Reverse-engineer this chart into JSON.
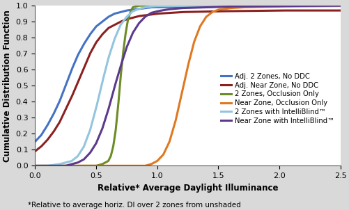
{
  "title": "",
  "xlabel": "Relative* Average Daylight Illuminance",
  "ylabel": "Cumulative Distribution Function",
  "footnote": "*Relative to average horiz. DI over 2 zones from unshaded",
  "xlim": [
    0,
    2.5
  ],
  "ylim": [
    0,
    1.0
  ],
  "xticks": [
    0,
    0.5,
    1.0,
    1.5,
    2.0,
    2.5
  ],
  "yticks": [
    0,
    0.1,
    0.2,
    0.3,
    0.4,
    0.5,
    0.6,
    0.7,
    0.8,
    0.9,
    1.0
  ],
  "series": [
    {
      "label": "Adj. 2 Zones, No DDC",
      "color": "#4472C4",
      "x_points": [
        0.0,
        0.05,
        0.1,
        0.15,
        0.2,
        0.25,
        0.3,
        0.35,
        0.4,
        0.45,
        0.5,
        0.55,
        0.6,
        0.65,
        0.7,
        0.75,
        0.8,
        0.85,
        0.9,
        0.95,
        1.0,
        1.2,
        1.5,
        2.0,
        2.5
      ],
      "y_points": [
        0.15,
        0.19,
        0.25,
        0.32,
        0.4,
        0.5,
        0.6,
        0.69,
        0.76,
        0.82,
        0.87,
        0.9,
        0.93,
        0.95,
        0.96,
        0.97,
        0.975,
        0.98,
        0.985,
        0.99,
        0.99,
        0.995,
        0.998,
        0.999,
        1.0
      ]
    },
    {
      "label": "Adj. Near Zone, No DDC",
      "color": "#8B2020",
      "x_points": [
        0.0,
        0.05,
        0.1,
        0.15,
        0.2,
        0.25,
        0.3,
        0.35,
        0.4,
        0.45,
        0.5,
        0.55,
        0.6,
        0.65,
        0.7,
        0.75,
        0.8,
        0.85,
        0.9,
        0.95,
        1.0,
        1.1,
        1.2,
        1.5,
        2.0,
        2.5
      ],
      "y_points": [
        0.09,
        0.12,
        0.16,
        0.21,
        0.27,
        0.35,
        0.43,
        0.52,
        0.61,
        0.7,
        0.77,
        0.82,
        0.86,
        0.88,
        0.9,
        0.915,
        0.925,
        0.935,
        0.94,
        0.945,
        0.95,
        0.955,
        0.96,
        0.965,
        0.97,
        0.97
      ]
    },
    {
      "label": "2 Zones, Occlusion Only",
      "color": "#6B8C26",
      "x_points": [
        0.0,
        0.5,
        0.55,
        0.6,
        0.62,
        0.64,
        0.66,
        0.68,
        0.7,
        0.72,
        0.74,
        0.76,
        0.78,
        0.8,
        0.85,
        0.9,
        1.0,
        1.5,
        2.5
      ],
      "y_points": [
        0.0,
        0.0,
        0.01,
        0.03,
        0.06,
        0.12,
        0.22,
        0.37,
        0.55,
        0.7,
        0.82,
        0.91,
        0.96,
        0.99,
        1.0,
        1.0,
        1.0,
        1.0,
        1.0
      ]
    },
    {
      "label": "Near Zone, Occlusion Only",
      "color": "#E07820",
      "x_points": [
        0.0,
        0.9,
        0.95,
        1.0,
        1.05,
        1.1,
        1.15,
        1.2,
        1.25,
        1.3,
        1.35,
        1.4,
        1.45,
        1.5,
        1.6,
        1.7,
        2.0,
        2.5
      ],
      "y_points": [
        0.0,
        0.0,
        0.01,
        0.03,
        0.07,
        0.15,
        0.28,
        0.45,
        0.62,
        0.77,
        0.87,
        0.93,
        0.96,
        0.975,
        0.985,
        0.99,
        0.995,
        0.998
      ]
    },
    {
      "label": "2 Zones with IntelliBlind™",
      "color": "#92C5DE",
      "x_points": [
        0.0,
        0.1,
        0.2,
        0.3,
        0.35,
        0.4,
        0.45,
        0.5,
        0.55,
        0.6,
        0.65,
        0.7,
        0.75,
        0.8,
        0.85,
        0.9,
        0.95,
        1.0,
        1.2,
        1.5,
        2.5
      ],
      "y_points": [
        0.0,
        0.0,
        0.01,
        0.03,
        0.06,
        0.12,
        0.22,
        0.36,
        0.52,
        0.67,
        0.79,
        0.88,
        0.93,
        0.965,
        0.98,
        0.99,
        0.995,
        0.998,
        0.999,
        1.0,
        1.0
      ]
    },
    {
      "label": "Near Zone with IntelliBlind™",
      "color": "#5B3A8C",
      "x_points": [
        0.0,
        0.25,
        0.3,
        0.35,
        0.4,
        0.45,
        0.5,
        0.55,
        0.6,
        0.65,
        0.7,
        0.75,
        0.8,
        0.85,
        0.9,
        0.95,
        1.0,
        1.05,
        1.1,
        1.2,
        1.4,
        1.6,
        2.0,
        2.5
      ],
      "y_points": [
        0.0,
        0.0,
        0.01,
        0.02,
        0.04,
        0.08,
        0.14,
        0.23,
        0.35,
        0.49,
        0.62,
        0.74,
        0.83,
        0.89,
        0.93,
        0.955,
        0.965,
        0.972,
        0.978,
        0.985,
        0.99,
        0.995,
        0.998,
        1.0
      ]
    }
  ],
  "background_color": "#D9D9D9",
  "plot_bg_color": "#FFFFFF",
  "linewidth": 2.2,
  "legend_fontsize": 7.2,
  "axis_label_fontsize": 8.5,
  "tick_fontsize": 8,
  "xlabel_fontsize": 8.5,
  "footnote_fontsize": 7.5
}
